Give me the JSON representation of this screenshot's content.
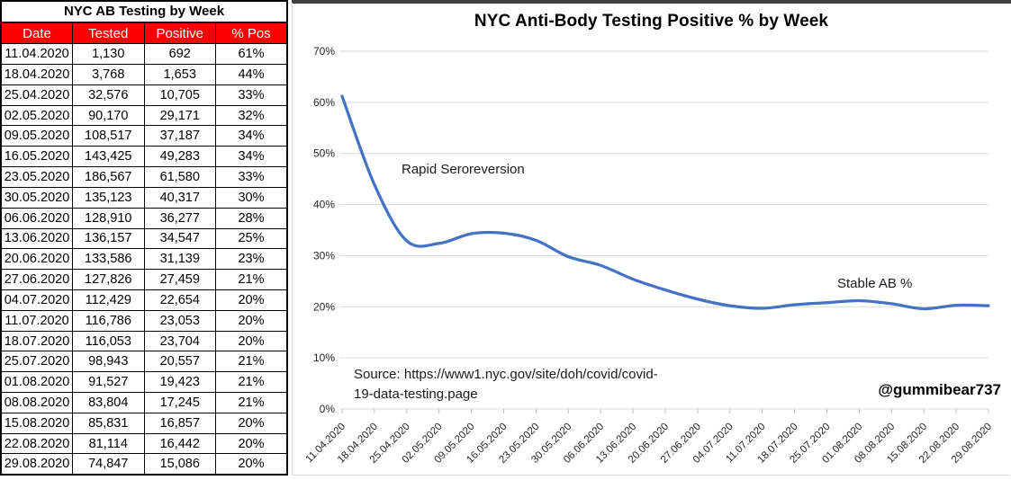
{
  "table": {
    "title": "NYC AB Testing by Week",
    "columns": [
      "Date",
      "Tested",
      "Positive",
      "% Pos"
    ],
    "rows": [
      [
        "11.04.2020",
        "1,130",
        "692",
        "61%"
      ],
      [
        "18.04.2020",
        "3,768",
        "1,653",
        "44%"
      ],
      [
        "25.04.2020",
        "32,576",
        "10,705",
        "33%"
      ],
      [
        "02.05.2020",
        "90,170",
        "29,171",
        "32%"
      ],
      [
        "09.05.2020",
        "108,517",
        "37,187",
        "34%"
      ],
      [
        "16.05.2020",
        "143,425",
        "49,283",
        "34%"
      ],
      [
        "23.05.2020",
        "186,567",
        "61,580",
        "33%"
      ],
      [
        "30.05.2020",
        "135,123",
        "40,317",
        "30%"
      ],
      [
        "06.06.2020",
        "128,910",
        "36,277",
        "28%"
      ],
      [
        "13.06.2020",
        "136,157",
        "34,547",
        "25%"
      ],
      [
        "20.06.2020",
        "133,586",
        "31,139",
        "23%"
      ],
      [
        "27.06.2020",
        "127,826",
        "27,459",
        "21%"
      ],
      [
        "04.07.2020",
        "112,429",
        "22,654",
        "20%"
      ],
      [
        "11.07.2020",
        "116,786",
        "23,053",
        "20%"
      ],
      [
        "18.07.2020",
        "116,053",
        "23,704",
        "20%"
      ],
      [
        "25.07.2020",
        "98,943",
        "20,557",
        "21%"
      ],
      [
        "01.08.2020",
        "91,527",
        "19,423",
        "21%"
      ],
      [
        "08.08.2020",
        "83,804",
        "17,245",
        "21%"
      ],
      [
        "15.08.2020",
        "85,831",
        "16,857",
        "20%"
      ],
      [
        "22.08.2020",
        "81,114",
        "16,442",
        "20%"
      ],
      [
        "29.08.2020",
        "74,847",
        "15,086",
        "20%"
      ]
    ],
    "header_bg": "#fe0000",
    "header_text_color": "#ffffff"
  },
  "chart": {
    "title": "NYC Anti-Body Testing Positive % by Week",
    "annotation_left": "Rapid Seroreversion",
    "annotation_right": "Stable AB %",
    "source_line1": "Source: https://www1.nyc.gov/site/doh/covid/covid-",
    "source_line2": "19-data-testing.page",
    "credit": "@gummibear737",
    "line_color": "#4472C4",
    "gridline_color": "#d9d9d9",
    "tick_color": "#bfbfbf",
    "axis_label_color": "#262626"
  },
  "chart_data": {
    "type": "line",
    "title": "NYC Anti-Body Testing Positive % by Week",
    "x": [
      "11.04.2020",
      "18.04.2020",
      "25.04.2020",
      "02.05.2020",
      "09.05.2020",
      "16.05.2020",
      "23.05.2020",
      "30.05.2020",
      "06.06.2020",
      "13.06.2020",
      "20.06.2020",
      "27.06.2020",
      "04.07.2020",
      "11.07.2020",
      "18.07.2020",
      "25.07.2020",
      "01.08.2020",
      "08.08.2020",
      "15.08.2020",
      "22.08.2020",
      "29.08.2020"
    ],
    "values": [
      61.2,
      43.9,
      32.9,
      32.4,
      34.3,
      34.4,
      33.0,
      29.8,
      28.1,
      25.4,
      23.3,
      21.5,
      20.2,
      19.7,
      20.4,
      20.8,
      21.2,
      20.6,
      19.6,
      20.3,
      20.2
    ],
    "xlabel": "",
    "ylabel": "",
    "ylim": [
      0,
      70
    ],
    "ytick_step": 10,
    "ytick_suffix": "%",
    "grid": true,
    "legend": false,
    "smooth": true
  }
}
